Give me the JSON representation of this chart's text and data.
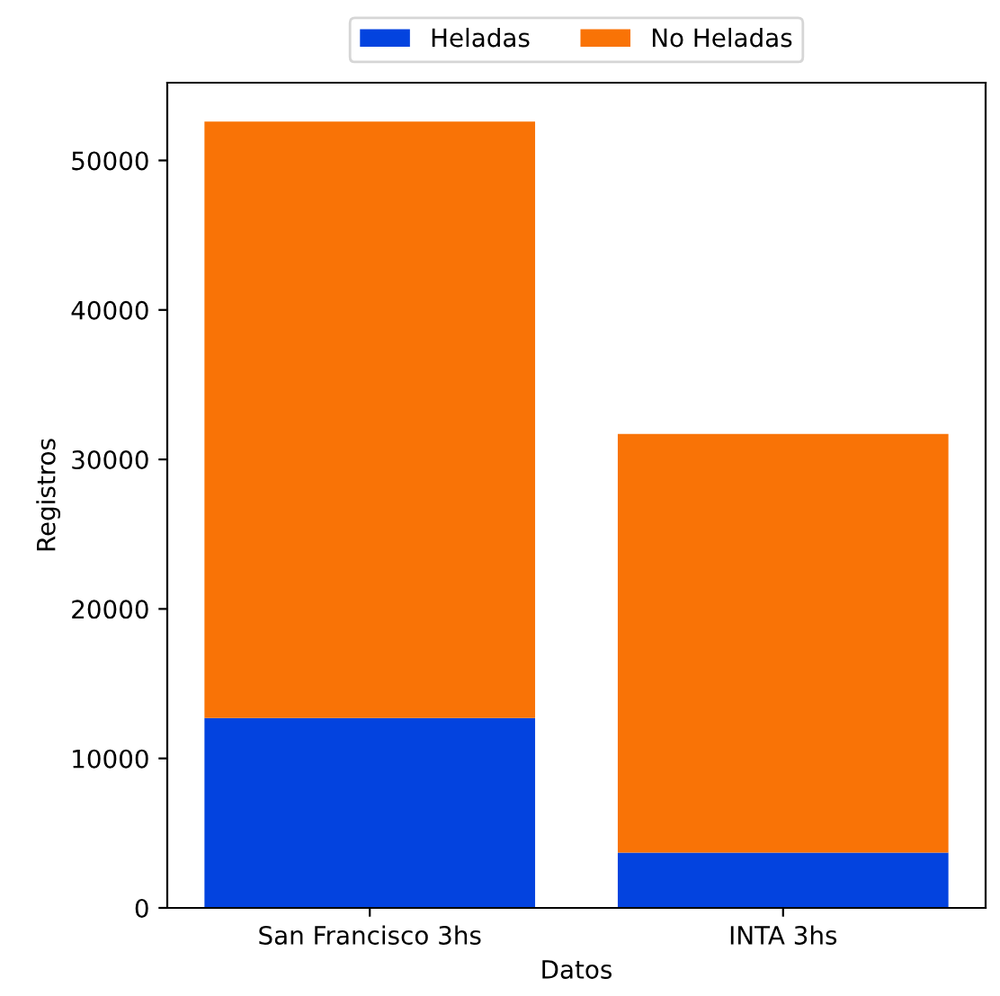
{
  "chart_data": {
    "type": "bar",
    "stacked": true,
    "categories": [
      "San Francisco 3hs",
      "INTA 3hs"
    ],
    "series": [
      {
        "name": "Heladas",
        "color": "#0343df",
        "values": [
          12700,
          3700
        ]
      },
      {
        "name": "No Heladas",
        "color": "#f97306",
        "values": [
          39900,
          28000
        ]
      }
    ],
    "xlabel": "Datos",
    "ylabel": "Registros",
    "ylim": [
      0,
      55200
    ],
    "yticks": [
      0,
      10000,
      20000,
      30000,
      40000,
      50000
    ],
    "legend": "top",
    "grid": false
  }
}
